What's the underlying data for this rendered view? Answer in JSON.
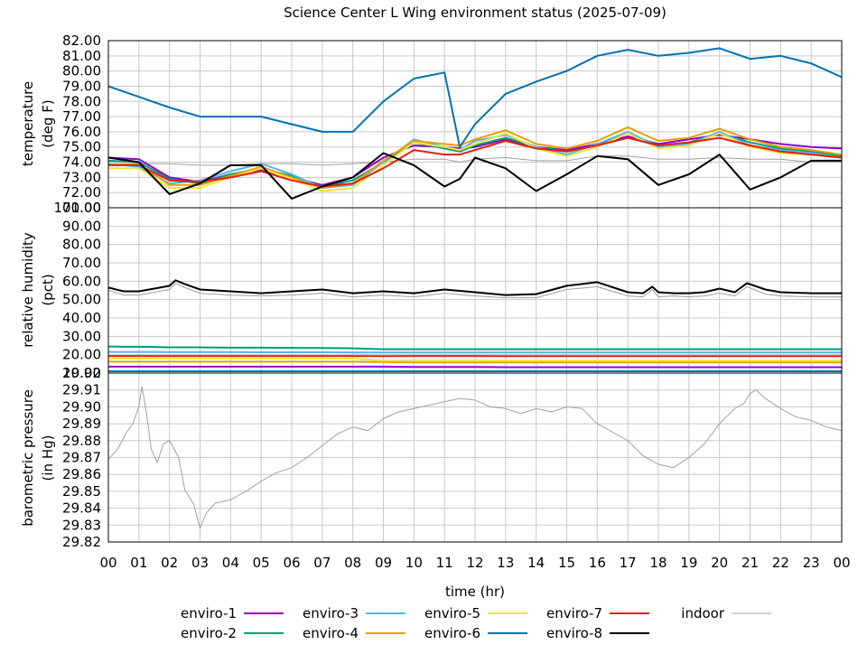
{
  "title": "Science Center L Wing environment status (2025-07-09)",
  "x_axis": {
    "label": "time (hr)",
    "ticks": [
      "00",
      "01",
      "02",
      "03",
      "04",
      "05",
      "06",
      "07",
      "08",
      "09",
      "10",
      "11",
      "12",
      "13",
      "14",
      "15",
      "16",
      "17",
      "18",
      "19",
      "20",
      "21",
      "22",
      "23",
      "00"
    ]
  },
  "series_legend": [
    {
      "name": "enviro-1",
      "color": "#9400d3"
    },
    {
      "name": "enviro-2",
      "color": "#009e73"
    },
    {
      "name": "enviro-3",
      "color": "#56b4e9"
    },
    {
      "name": "enviro-4",
      "color": "#e69f00"
    },
    {
      "name": "enviro-5",
      "color": "#f0e442"
    },
    {
      "name": "enviro-6",
      "color": "#0072b2"
    },
    {
      "name": "enviro-7",
      "color": "#e51e10"
    },
    {
      "name": "enviro-8",
      "color": "#000000"
    },
    {
      "name": "indoor",
      "color": "#a0a0a0"
    }
  ],
  "chart_data": [
    {
      "type": "line",
      "panel": "temperature",
      "ylabel": [
        "temperature",
        "(deg F)"
      ],
      "ylim": [
        71,
        82
      ],
      "yticks": [
        "82.00",
        "81.00",
        "80.00",
        "79.00",
        "78.00",
        "77.00",
        "76.00",
        "75.00",
        "74.00",
        "73.00",
        "72.00",
        "71.00"
      ],
      "x": [
        0,
        1,
        2,
        3,
        4,
        5,
        6,
        7,
        8,
        9,
        10,
        11,
        11.5,
        12,
        13,
        14,
        15,
        16,
        17,
        18,
        19,
        20,
        21,
        22,
        23,
        24
      ],
      "series": [
        {
          "name": "enviro-1",
          "values": [
            74.3,
            74.2,
            73.0,
            72.7,
            73.2,
            73.5,
            73.0,
            72.5,
            73.0,
            74.3,
            75.1,
            75.0,
            74.9,
            75.0,
            75.5,
            75.0,
            74.8,
            75.2,
            75.7,
            75.2,
            75.5,
            75.8,
            75.5,
            75.2,
            75.0,
            74.9
          ]
        },
        {
          "name": "enviro-2",
          "values": [
            74.1,
            74.0,
            72.9,
            72.6,
            73.2,
            73.6,
            73.1,
            72.4,
            72.8,
            74.0,
            75.3,
            74.9,
            74.7,
            75.1,
            75.6,
            75.0,
            74.7,
            75.1,
            75.9,
            75.1,
            75.3,
            75.9,
            75.3,
            74.9,
            74.7,
            74.4
          ]
        },
        {
          "name": "enviro-3",
          "values": [
            73.9,
            73.7,
            72.6,
            72.8,
            73.4,
            73.9,
            73.2,
            72.3,
            72.5,
            74.0,
            75.5,
            75.0,
            74.8,
            75.4,
            75.8,
            75.0,
            74.5,
            75.2,
            76.0,
            75.0,
            75.2,
            76.0,
            75.1,
            74.8,
            74.6,
            74.3
          ]
        },
        {
          "name": "enviro-4",
          "values": [
            73.8,
            73.9,
            72.5,
            72.5,
            73.1,
            73.7,
            73.0,
            72.3,
            72.6,
            74.1,
            75.4,
            75.2,
            75.1,
            75.5,
            76.1,
            75.2,
            74.9,
            75.4,
            76.3,
            75.4,
            75.6,
            76.2,
            75.5,
            75.0,
            74.8,
            74.5
          ]
        },
        {
          "name": "enviro-5",
          "values": [
            73.6,
            73.6,
            72.3,
            72.3,
            73.0,
            73.6,
            72.9,
            72.1,
            72.3,
            73.8,
            75.3,
            75.0,
            74.8,
            75.2,
            75.9,
            74.9,
            74.4,
            75.0,
            75.9,
            74.9,
            75.1,
            75.9,
            75.0,
            74.6,
            74.5,
            74.3
          ]
        },
        {
          "name": "enviro-6",
          "values": [
            79.0,
            78.3,
            77.6,
            77.0,
            77.0,
            77.0,
            76.5,
            76.0,
            76.0,
            78.0,
            79.5,
            79.9,
            75.0,
            76.5,
            78.5,
            79.3,
            80.0,
            81.0,
            81.4,
            81.0,
            81.2,
            81.5,
            80.8,
            81.0,
            80.5,
            79.6
          ]
        },
        {
          "name": "enviro-7",
          "values": [
            73.8,
            73.8,
            72.8,
            72.7,
            73.0,
            73.4,
            72.8,
            72.4,
            72.6,
            73.6,
            74.8,
            74.5,
            74.5,
            74.8,
            75.4,
            74.9,
            74.7,
            75.1,
            75.6,
            75.1,
            75.3,
            75.6,
            75.1,
            74.7,
            74.5,
            74.3
          ]
        },
        {
          "name": "enviro-8",
          "values": [
            74.3,
            74.0,
            71.9,
            72.6,
            73.8,
            73.8,
            71.6,
            72.4,
            73.0,
            74.6,
            73.8,
            72.4,
            72.9,
            74.3,
            73.6,
            72.1,
            73.2,
            74.4,
            74.2,
            72.5,
            73.2,
            74.5,
            72.2,
            73.0,
            74.1,
            74.1
          ]
        },
        {
          "name": "indoor",
          "values": [
            73.9,
            73.9,
            73.9,
            73.8,
            73.8,
            73.9,
            73.9,
            73.8,
            73.9,
            74.0,
            74.2,
            74.2,
            74.0,
            74.2,
            74.3,
            74.1,
            74.1,
            74.4,
            74.4,
            74.2,
            74.2,
            74.3,
            74.2,
            74.2,
            74.0,
            74.0
          ]
        }
      ]
    },
    {
      "type": "line",
      "panel": "relative-humidity",
      "ylabel": [
        "relative humidity",
        "(pct)"
      ],
      "ylim": [
        10,
        100
      ],
      "yticks": [
        "100.00",
        "90.00",
        "80.00",
        "70.00",
        "60.00",
        "50.00",
        "40.00",
        "30.00",
        "20.00",
        "10.00"
      ],
      "x": [
        0,
        0.5,
        1,
        1.5,
        2,
        2.2,
        2.5,
        3,
        4,
        5,
        6,
        7,
        8,
        9,
        10,
        11,
        12,
        13,
        14,
        15,
        16,
        17,
        17.5,
        17.8,
        18,
        18.5,
        19,
        19.5,
        20,
        20.5,
        20.9,
        21.5,
        22,
        23,
        24
      ],
      "series": [
        {
          "name": "enviro-1",
          "values": [
            13.5,
            13.5,
            13.5,
            13.5,
            13.5,
            13.5,
            13.5,
            13.5,
            13.5,
            13.5,
            13.5,
            13.5,
            13.5,
            13.5,
            13.3,
            13.3,
            13.3,
            13.2,
            13.2,
            13.2,
            13.2,
            13.2,
            13.2,
            13.2,
            13.2,
            13.2,
            13.2,
            13.2,
            13.2,
            13.2,
            13.2,
            13.2,
            13.2,
            13.2,
            13.2
          ]
        },
        {
          "name": "enviro-2",
          "values": [
            24.5,
            24.3,
            24.3,
            24.2,
            24.0,
            24.0,
            24.0,
            24.0,
            23.8,
            23.8,
            23.7,
            23.6,
            23.5,
            23.0,
            23.0,
            23.0,
            23.0,
            23.0,
            23.0,
            23.0,
            23.0,
            23.0,
            23.0,
            23.0,
            23.0,
            23.0,
            23.0,
            23.0,
            23.0,
            23.0,
            23.0,
            23.0,
            23.0,
            23.0,
            23.0
          ]
        },
        {
          "name": "enviro-3",
          "values": [
            21.5,
            21.5,
            21.5,
            21.5,
            21.4,
            21.4,
            21.4,
            21.4,
            21.4,
            21.3,
            21.3,
            21.3,
            21.2,
            21.2,
            21.2,
            21.2,
            21.2,
            21.2,
            21.2,
            21.2,
            21.2,
            21.2,
            21.2,
            21.2,
            21.2,
            21.2,
            21.2,
            21.2,
            21.2,
            21.2,
            21.2,
            21.2,
            21.2,
            21.2,
            21.2
          ]
        },
        {
          "name": "enviro-4",
          "values": [
            16.2,
            16.2,
            16.2,
            16.2,
            16.2,
            16.2,
            16.2,
            16.2,
            16.2,
            16.2,
            16.2,
            16.2,
            16.2,
            16.0,
            15.8,
            15.8,
            15.8,
            15.8,
            15.8,
            15.8,
            15.8,
            15.8,
            15.8,
            15.8,
            15.8,
            15.8,
            15.8,
            15.8,
            15.8,
            15.8,
            15.8,
            15.8,
            15.8,
            15.8,
            15.8
          ]
        },
        {
          "name": "enviro-5",
          "values": [
            18.0,
            18.0,
            18.0,
            18.0,
            18.0,
            18.0,
            18.0,
            18.0,
            18.0,
            18.0,
            18.0,
            18.0,
            18.0,
            16.8,
            16.8,
            16.8,
            16.8,
            16.8,
            16.8,
            16.8,
            16.8,
            16.8,
            16.8,
            16.8,
            16.8,
            16.8,
            16.8,
            16.8,
            16.8,
            16.8,
            16.8,
            16.8,
            16.8,
            16.8,
            16.8
          ]
        },
        {
          "name": "enviro-6",
          "values": [
            11.0,
            11.0,
            11.0,
            11.0,
            11.0,
            11.0,
            11.0,
            11.0,
            11.0,
            11.0,
            11.0,
            11.0,
            11.0,
            11.0,
            11.0,
            11.0,
            11.0,
            11.0,
            11.0,
            11.0,
            11.0,
            11.0,
            11.0,
            11.0,
            11.0,
            11.0,
            11.0,
            11.0,
            11.0,
            11.0,
            11.0,
            11.0,
            11.0,
            11.0,
            11.0
          ]
        },
        {
          "name": "enviro-7",
          "values": [
            19.3,
            19.3,
            19.3,
            19.3,
            19.3,
            19.3,
            19.3,
            19.3,
            19.3,
            19.3,
            19.3,
            19.3,
            19.3,
            19.2,
            19.3,
            19.3,
            19.3,
            19.2,
            19.2,
            19.2,
            19.2,
            19.2,
            19.2,
            19.2,
            19.2,
            19.2,
            19.2,
            19.2,
            19.2,
            19.2,
            19.2,
            19.2,
            19.2,
            19.2,
            19.2
          ]
        },
        {
          "name": "enviro-8",
          "values": [
            56.5,
            54.5,
            54.5,
            56.0,
            57.5,
            60.5,
            58.5,
            55.5,
            54.5,
            53.5,
            54.5,
            55.5,
            53.5,
            54.5,
            53.5,
            55.5,
            54.0,
            52.5,
            53.0,
            57.5,
            59.5,
            54.0,
            53.5,
            57.0,
            54.0,
            53.5,
            53.5,
            54.0,
            56.0,
            54.0,
            59.0,
            55.5,
            54.0,
            53.5,
            53.5
          ]
        },
        {
          "name": "indoor",
          "values": [
            55.0,
            52.5,
            52.5,
            54.0,
            55.5,
            59.0,
            56.5,
            53.5,
            52.5,
            52.0,
            52.5,
            53.5,
            51.5,
            52.5,
            51.5,
            53.5,
            52.0,
            51.0,
            51.0,
            55.5,
            57.0,
            52.0,
            51.5,
            55.5,
            51.5,
            52.0,
            51.5,
            52.0,
            53.5,
            52.0,
            57.0,
            53.0,
            52.0,
            51.5,
            51.5
          ]
        }
      ]
    },
    {
      "type": "line",
      "panel": "barometric-pressure",
      "ylabel": [
        "barometric pressure",
        "(in Hg)"
      ],
      "ylim": [
        29.82,
        29.92
      ],
      "yticks": [
        "29.92",
        "29.91",
        "29.90",
        "29.89",
        "29.88",
        "29.87",
        "29.86",
        "29.85",
        "29.84",
        "29.83",
        "29.82"
      ],
      "x": [
        0,
        0.3,
        0.6,
        0.8,
        1,
        1.1,
        1.25,
        1.4,
        1.6,
        1.8,
        2,
        2.3,
        2.5,
        2.8,
        3,
        3.2,
        3.5,
        4,
        4.5,
        5,
        5.5,
        6,
        6.5,
        7,
        7.5,
        8,
        8.5,
        9,
        9.5,
        10,
        10.5,
        11,
        11.5,
        12,
        12.5,
        13,
        13.5,
        14,
        14.5,
        15,
        15.5,
        16,
        16.5,
        17,
        17.5,
        18,
        18.5,
        19,
        19.5,
        20,
        20.5,
        20.8,
        21,
        21.2,
        21.5,
        22,
        22.5,
        23,
        23.5,
        24
      ],
      "series": [
        {
          "name": "indoor",
          "values": [
            29.869,
            29.875,
            29.885,
            29.89,
            29.9,
            29.912,
            29.896,
            29.875,
            29.867,
            29.878,
            29.88,
            29.87,
            29.851,
            29.842,
            29.828,
            29.837,
            29.843,
            29.845,
            29.85,
            29.856,
            29.861,
            29.864,
            29.87,
            29.877,
            29.884,
            29.888,
            29.886,
            29.893,
            29.897,
            29.899,
            29.901,
            29.903,
            29.905,
            29.904,
            29.9,
            29.899,
            29.896,
            29.899,
            29.897,
            29.9,
            29.899,
            29.89,
            29.885,
            29.88,
            29.871,
            29.866,
            29.864,
            29.87,
            29.878,
            29.89,
            29.899,
            29.902,
            29.908,
            29.91,
            29.905,
            29.899,
            29.894,
            29.892,
            29.888,
            29.886
          ]
        }
      ]
    }
  ]
}
